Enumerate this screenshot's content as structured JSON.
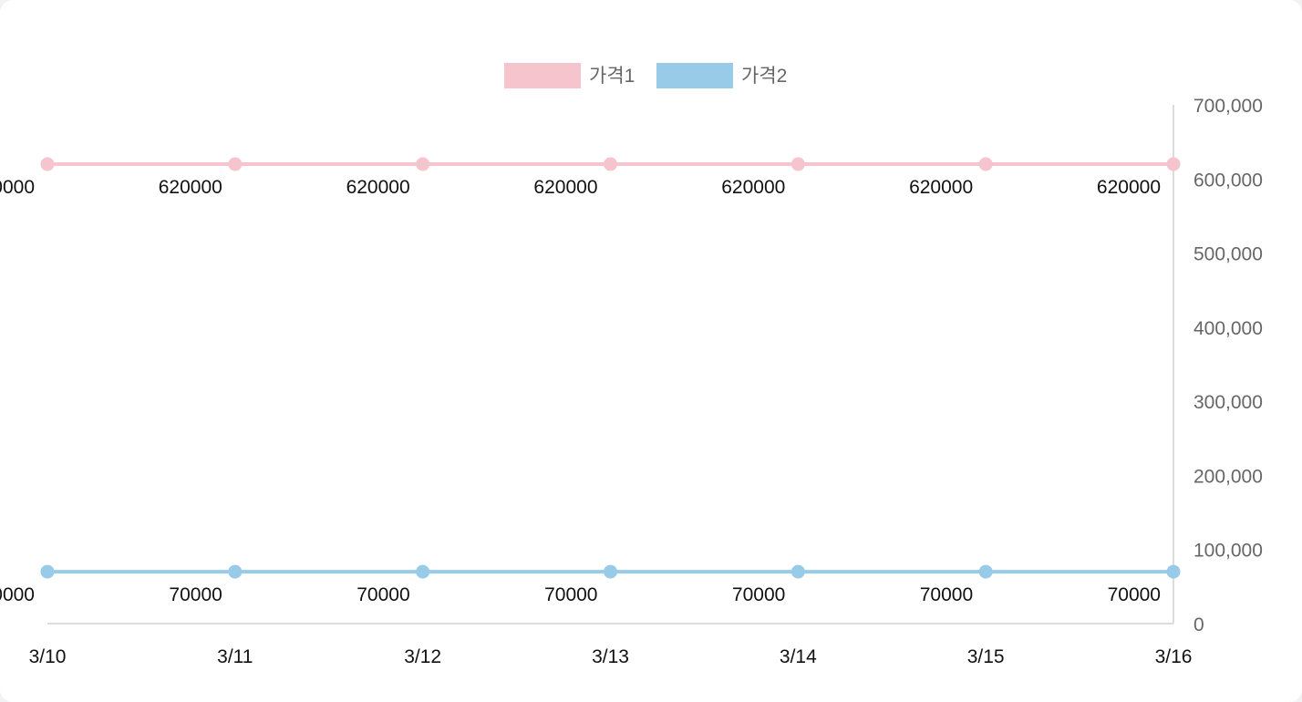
{
  "chart_data": {
    "type": "line",
    "categories": [
      "3/10",
      "3/11",
      "3/12",
      "3/13",
      "3/14",
      "3/15",
      "3/16"
    ],
    "highlight_category": "3/16",
    "highlight_color": "#3c5fd8",
    "series": [
      {
        "name": "가격1",
        "values": [
          620000,
          620000,
          620000,
          620000,
          620000,
          620000,
          620000
        ],
        "color": "#f5c4cc"
      },
      {
        "name": "가격2",
        "values": [
          70000,
          70000,
          70000,
          70000,
          70000,
          70000,
          70000
        ],
        "color": "#98cbe8"
      }
    ],
    "y_ticks": [
      "0",
      "100,000",
      "200,000",
      "300,000",
      "400,000",
      "500,000",
      "600,000",
      "700,000"
    ],
    "ylim": [
      0,
      700000
    ],
    "y_axis_position": "right",
    "legend_position": "top-center",
    "data_labels": true,
    "grid": false
  }
}
